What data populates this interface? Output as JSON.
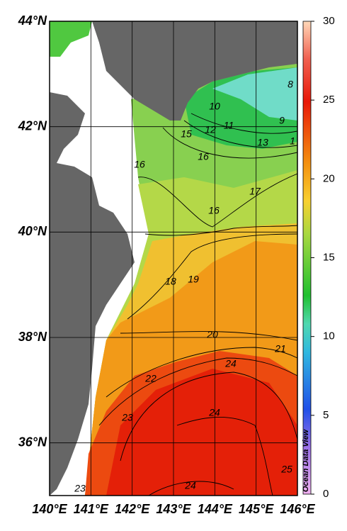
{
  "map": {
    "lat_labels": [
      {
        "value": 44,
        "label": "44°N"
      },
      {
        "value": 42,
        "label": "42°N"
      },
      {
        "value": 40,
        "label": "40°N"
      },
      {
        "value": 38,
        "label": "38°N"
      },
      {
        "value": 36,
        "label": "36°N"
      }
    ],
    "lon_labels": [
      {
        "value": 140,
        "label": "140°E"
      },
      {
        "value": 141,
        "label": "141°E"
      },
      {
        "value": 142,
        "label": "142°E"
      },
      {
        "value": 143,
        "label": "143°E"
      },
      {
        "value": 144,
        "label": "144°E"
      },
      {
        "value": 145,
        "label": "145°E"
      },
      {
        "value": 146,
        "label": "146°E"
      }
    ],
    "lon_range": [
      140,
      146
    ],
    "lat_range": [
      35,
      44
    ],
    "colorbar": {
      "range": [
        0,
        30
      ],
      "ticks": [
        0,
        5,
        10,
        15,
        20,
        25,
        30
      ]
    },
    "contour_labels": [
      8,
      9,
      10,
      11,
      12,
      1,
      13,
      15,
      16,
      16,
      16,
      17,
      18,
      19,
      20,
      21,
      22,
      24,
      23,
      24,
      24,
      25,
      23
    ],
    "credit": "Ocean Data View"
  }
}
